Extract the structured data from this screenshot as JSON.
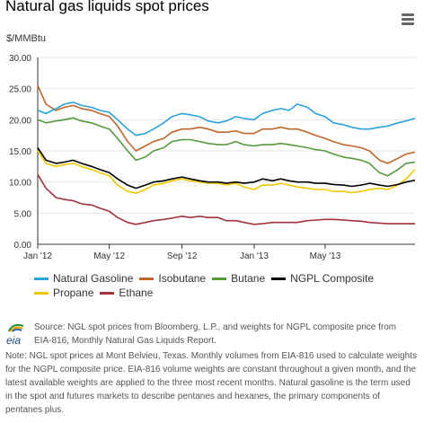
{
  "header": {
    "title": "Natural gas liquids spot prices",
    "menu_icon": "hamburger-menu-icon"
  },
  "colors": {
    "Natural Gasoline": "#2aa2dd",
    "Isobutane": "#c0662b",
    "Butane": "#55993c",
    "NGPL Composite": "#000000",
    "Propane": "#f0c800",
    "Ethane": "#a3323c",
    "grid": "#e4e4e4",
    "axis": "#333333"
  },
  "chart_data": {
    "type": "line",
    "ylabel": "$/MMBtu",
    "ylim": [
      0,
      30
    ],
    "yticks": [
      "0.00",
      "5.00",
      "10.00",
      "15.00",
      "20.00",
      "25.00",
      "30.00"
    ],
    "xticks": [
      "Jan '12",
      "May '12",
      "Sep '12",
      "Jan '13",
      "May '13"
    ],
    "xtick_dates": [
      "2012-01-01",
      "2012-05-01",
      "2012-09-01",
      "2013-01-01",
      "2013-05-01"
    ],
    "xlim": [
      "2012-01-01",
      "2013-09-30"
    ],
    "grid": true,
    "legend_position": "bottom",
    "x": [
      "2012-01-01",
      "2012-01-15",
      "2012-02-01",
      "2012-02-15",
      "2012-03-01",
      "2012-03-15",
      "2012-04-01",
      "2012-04-15",
      "2012-05-01",
      "2012-05-15",
      "2012-06-01",
      "2012-06-15",
      "2012-07-01",
      "2012-07-15",
      "2012-08-01",
      "2012-08-15",
      "2012-09-01",
      "2012-09-15",
      "2012-10-01",
      "2012-10-15",
      "2012-11-01",
      "2012-11-15",
      "2012-12-01",
      "2012-12-15",
      "2013-01-01",
      "2013-01-15",
      "2013-02-01",
      "2013-02-15",
      "2013-03-01",
      "2013-03-15",
      "2013-04-01",
      "2013-04-15",
      "2013-05-01",
      "2013-05-15",
      "2013-06-01",
      "2013-06-15",
      "2013-07-01",
      "2013-07-15",
      "2013-08-01",
      "2013-08-15",
      "2013-09-01",
      "2013-09-15",
      "2013-09-30"
    ],
    "series": [
      {
        "name": "Natural Gasoline",
        "values": [
          21.5,
          21.0,
          21.8,
          22.5,
          22.8,
          22.3,
          22.0,
          21.5,
          21.2,
          20.0,
          18.5,
          17.5,
          17.8,
          18.5,
          19.5,
          20.5,
          21.0,
          20.8,
          20.5,
          19.8,
          19.5,
          19.8,
          20.5,
          20.2,
          20.0,
          21.0,
          21.5,
          21.8,
          21.5,
          22.5,
          22.0,
          21.0,
          20.5,
          19.5,
          19.2,
          18.8,
          18.5,
          18.5,
          18.8,
          19.0,
          19.5,
          19.8,
          20.2
        ]
      },
      {
        "name": "Isobutane",
        "values": [
          25.5,
          22.5,
          21.5,
          22.0,
          22.3,
          21.8,
          21.5,
          21.0,
          20.5,
          19.0,
          16.5,
          15.0,
          15.8,
          16.5,
          17.0,
          18.0,
          18.5,
          18.5,
          18.8,
          18.5,
          18.0,
          18.0,
          18.2,
          17.8,
          17.8,
          18.5,
          18.5,
          18.8,
          18.5,
          18.5,
          18.0,
          17.5,
          17.0,
          16.5,
          16.0,
          15.8,
          15.5,
          15.0,
          13.5,
          13.0,
          13.8,
          14.5,
          14.8
        ]
      },
      {
        "name": "Butane",
        "values": [
          20.0,
          19.5,
          19.8,
          20.0,
          20.3,
          19.8,
          19.5,
          19.0,
          18.5,
          17.0,
          15.0,
          13.5,
          14.0,
          15.0,
          15.5,
          16.5,
          16.8,
          16.8,
          16.5,
          16.2,
          16.0,
          16.0,
          16.5,
          16.0,
          15.8,
          16.0,
          16.0,
          16.2,
          16.0,
          15.8,
          15.5,
          15.2,
          15.0,
          14.5,
          14.0,
          13.8,
          13.5,
          13.0,
          11.5,
          11.0,
          12.0,
          13.0,
          13.2
        ]
      },
      {
        "name": "NGPL Composite",
        "values": [
          15.5,
          13.5,
          13.0,
          13.2,
          13.5,
          13.0,
          12.5,
          12.0,
          11.5,
          10.5,
          9.5,
          9.0,
          9.5,
          10.0,
          10.2,
          10.5,
          10.8,
          10.5,
          10.2,
          10.0,
          10.0,
          9.8,
          10.0,
          9.8,
          10.0,
          10.5,
          10.2,
          10.5,
          10.2,
          10.0,
          10.0,
          9.8,
          9.8,
          9.6,
          9.5,
          9.3,
          9.5,
          9.8,
          9.5,
          9.3,
          9.6,
          10.0,
          10.3
        ]
      },
      {
        "name": "Propane",
        "values": [
          15.0,
          13.0,
          12.5,
          12.8,
          13.0,
          12.5,
          12.0,
          11.5,
          11.0,
          9.5,
          8.5,
          8.2,
          8.8,
          9.5,
          9.8,
          10.2,
          10.5,
          10.2,
          10.0,
          9.8,
          9.8,
          9.5,
          9.8,
          9.2,
          8.8,
          9.5,
          9.5,
          9.8,
          9.5,
          9.2,
          9.0,
          8.8,
          8.8,
          8.5,
          8.5,
          8.3,
          8.5,
          8.8,
          9.0,
          8.8,
          9.5,
          10.5,
          12.0
        ]
      },
      {
        "name": "Ethane",
        "values": [
          11.2,
          9.0,
          7.5,
          7.2,
          7.0,
          6.5,
          6.3,
          5.8,
          5.3,
          4.3,
          3.5,
          3.2,
          3.5,
          3.8,
          4.0,
          4.2,
          4.5,
          4.3,
          4.5,
          4.3,
          4.3,
          3.8,
          3.8,
          3.5,
          3.2,
          3.3,
          3.5,
          3.5,
          3.5,
          3.5,
          3.8,
          3.9,
          4.0,
          4.0,
          3.9,
          3.8,
          3.7,
          3.5,
          3.4,
          3.3,
          3.3,
          3.3,
          3.3
        ]
      }
    ]
  },
  "legend": {
    "row1": [
      "Natural Gasoline",
      "Isobutane",
      "Butane",
      "NGPL Composite"
    ],
    "row2": [
      "Propane",
      "Ethane"
    ]
  },
  "footer": {
    "logo_text": "eia",
    "source": "Source: NGL spot prices from Bloomberg, L.P., and weights for NGPL composite price from EIA-816, Monthly Natural Gas Liquids Report.",
    "note": "Note: NGL spot prices at Mont Belvieu, Texas. Monthly volumes from EIA-816 used to calculate weights for the NGPL composite price. EIA-816 volume weights are constant throughout a given month, and the latest available weights are applied to the three most recent months. Natural gasoline is the term used in the spot and futures markets to describe pentanes and hexanes, the primary components of pentanes plus."
  }
}
